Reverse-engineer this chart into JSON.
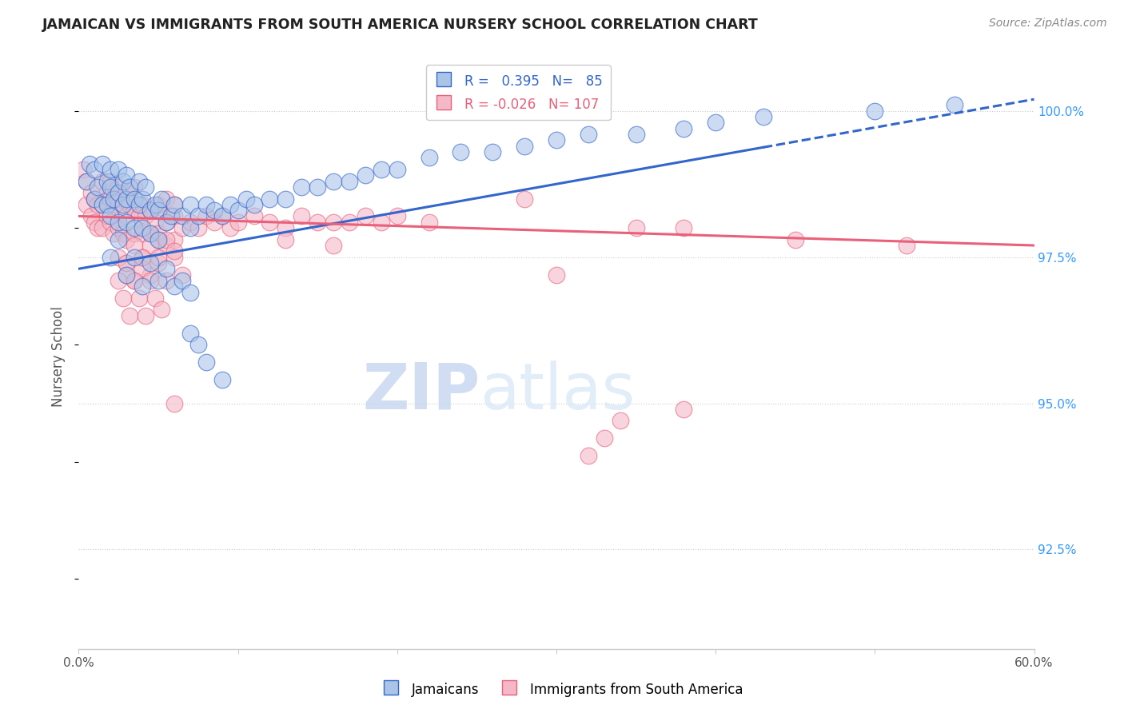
{
  "title": "JAMAICAN VS IMMIGRANTS FROM SOUTH AMERICA NURSERY SCHOOL CORRELATION CHART",
  "source": "Source: ZipAtlas.com",
  "xlabel_blue": "Jamaicans",
  "xlabel_pink": "Immigrants from South America",
  "ylabel": "Nursery School",
  "r_blue": 0.395,
  "n_blue": 85,
  "r_pink": -0.026,
  "n_pink": 107,
  "color_blue": "#aac4e8",
  "color_pink": "#f4b8c8",
  "trendline_blue": "#3366cc",
  "trendline_pink": "#e8607a",
  "xlim": [
    0.0,
    0.6
  ],
  "ylim": [
    0.908,
    1.008
  ],
  "yticks": [
    0.925,
    0.95,
    0.975,
    1.0
  ],
  "ytick_labels": [
    "92.5%",
    "95.0%",
    "97.5%",
    "100.0%"
  ],
  "xticks": [
    0.0,
    0.1,
    0.2,
    0.3,
    0.4,
    0.5,
    0.6
  ],
  "xtick_labels": [
    "0.0%",
    "",
    "",
    "",
    "",
    "",
    "60.0%"
  ],
  "watermark_zip": "ZIP",
  "watermark_atlas": "atlas",
  "blue_x": [
    0.005,
    0.007,
    0.01,
    0.01,
    0.012,
    0.015,
    0.015,
    0.018,
    0.018,
    0.02,
    0.02,
    0.02,
    0.022,
    0.025,
    0.025,
    0.025,
    0.028,
    0.028,
    0.03,
    0.03,
    0.03,
    0.032,
    0.035,
    0.035,
    0.038,
    0.038,
    0.04,
    0.04,
    0.042,
    0.045,
    0.045,
    0.048,
    0.05,
    0.05,
    0.052,
    0.055,
    0.058,
    0.06,
    0.065,
    0.07,
    0.07,
    0.075,
    0.08,
    0.085,
    0.09,
    0.095,
    0.1,
    0.105,
    0.11,
    0.12,
    0.13,
    0.14,
    0.15,
    0.16,
    0.17,
    0.18,
    0.19,
    0.2,
    0.22,
    0.24,
    0.26,
    0.28,
    0.3,
    0.32,
    0.35,
    0.38,
    0.4,
    0.43,
    0.02,
    0.025,
    0.03,
    0.035,
    0.04,
    0.045,
    0.05,
    0.055,
    0.06,
    0.065,
    0.07,
    0.5,
    0.55,
    0.07,
    0.075,
    0.08,
    0.09
  ],
  "blue_y": [
    0.988,
    0.991,
    0.985,
    0.99,
    0.987,
    0.984,
    0.991,
    0.988,
    0.984,
    0.99,
    0.987,
    0.982,
    0.985,
    0.99,
    0.986,
    0.981,
    0.988,
    0.984,
    0.989,
    0.985,
    0.981,
    0.987,
    0.985,
    0.98,
    0.984,
    0.988,
    0.985,
    0.98,
    0.987,
    0.983,
    0.979,
    0.984,
    0.983,
    0.978,
    0.985,
    0.981,
    0.982,
    0.984,
    0.982,
    0.984,
    0.98,
    0.982,
    0.984,
    0.983,
    0.982,
    0.984,
    0.983,
    0.985,
    0.984,
    0.985,
    0.985,
    0.987,
    0.987,
    0.988,
    0.988,
    0.989,
    0.99,
    0.99,
    0.992,
    0.993,
    0.993,
    0.994,
    0.995,
    0.996,
    0.996,
    0.997,
    0.998,
    0.999,
    0.975,
    0.978,
    0.972,
    0.975,
    0.97,
    0.974,
    0.971,
    0.973,
    0.97,
    0.971,
    0.969,
    1.0,
    1.001,
    0.962,
    0.96,
    0.957,
    0.954
  ],
  "pink_x": [
    0.003,
    0.005,
    0.005,
    0.008,
    0.008,
    0.01,
    0.01,
    0.012,
    0.012,
    0.015,
    0.015,
    0.015,
    0.018,
    0.018,
    0.02,
    0.02,
    0.02,
    0.022,
    0.022,
    0.025,
    0.025,
    0.025,
    0.028,
    0.028,
    0.03,
    0.03,
    0.03,
    0.032,
    0.035,
    0.035,
    0.035,
    0.038,
    0.04,
    0.04,
    0.042,
    0.045,
    0.045,
    0.048,
    0.05,
    0.05,
    0.055,
    0.055,
    0.06,
    0.06,
    0.065,
    0.07,
    0.075,
    0.08,
    0.085,
    0.09,
    0.095,
    0.1,
    0.11,
    0.12,
    0.13,
    0.14,
    0.15,
    0.16,
    0.17,
    0.18,
    0.19,
    0.2,
    0.22,
    0.03,
    0.035,
    0.04,
    0.045,
    0.05,
    0.025,
    0.03,
    0.035,
    0.04,
    0.045,
    0.05,
    0.055,
    0.06,
    0.025,
    0.03,
    0.035,
    0.04,
    0.045,
    0.05,
    0.055,
    0.06,
    0.065,
    0.028,
    0.032,
    0.038,
    0.042,
    0.048,
    0.052,
    0.13,
    0.16,
    0.45,
    0.52,
    0.3,
    0.35,
    0.38,
    0.28,
    0.05,
    0.055,
    0.06,
    0.38,
    0.34,
    0.33,
    0.32,
    0.06
  ],
  "pink_y": [
    0.99,
    0.988,
    0.984,
    0.986,
    0.982,
    0.985,
    0.981,
    0.984,
    0.98,
    0.984,
    0.98,
    0.988,
    0.986,
    0.982,
    0.985,
    0.981,
    0.988,
    0.984,
    0.979,
    0.985,
    0.98,
    0.987,
    0.984,
    0.979,
    0.986,
    0.982,
    0.978,
    0.984,
    0.983,
    0.979,
    0.987,
    0.982,
    0.984,
    0.979,
    0.982,
    0.983,
    0.979,
    0.981,
    0.983,
    0.979,
    0.981,
    0.977,
    0.982,
    0.978,
    0.98,
    0.981,
    0.98,
    0.982,
    0.981,
    0.982,
    0.98,
    0.981,
    0.982,
    0.981,
    0.98,
    0.982,
    0.981,
    0.981,
    0.981,
    0.982,
    0.981,
    0.982,
    0.981,
    0.974,
    0.971,
    0.975,
    0.972,
    0.978,
    0.975,
    0.972,
    0.977,
    0.973,
    0.977,
    0.974,
    0.978,
    0.975,
    0.971,
    0.974,
    0.971,
    0.975,
    0.971,
    0.975,
    0.971,
    0.976,
    0.972,
    0.968,
    0.965,
    0.968,
    0.965,
    0.968,
    0.966,
    0.978,
    0.977,
    0.978,
    0.977,
    0.972,
    0.98,
    0.98,
    0.985,
    0.984,
    0.985,
    0.984,
    0.949,
    0.947,
    0.944,
    0.941,
    0.95
  ]
}
